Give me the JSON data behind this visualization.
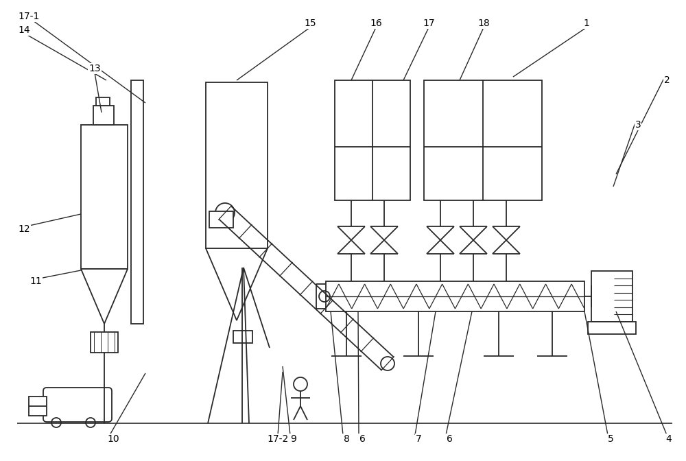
{
  "bg_color": "#ffffff",
  "lc": "#2a2a2a",
  "lw": 1.3,
  "figw": 10.0,
  "figh": 6.72,
  "dpi": 100,
  "labels": [
    [
      "1",
      8.55,
      6.38
    ],
    [
      "2",
      9.72,
      5.55
    ],
    [
      "3",
      9.3,
      4.9
    ],
    [
      "4",
      9.75,
      0.32
    ],
    [
      "5",
      8.9,
      0.32
    ],
    [
      "6",
      6.55,
      0.32
    ],
    [
      "6",
      5.28,
      0.32
    ],
    [
      "7",
      6.1,
      0.32
    ],
    [
      "8",
      5.05,
      0.32
    ],
    [
      "9",
      4.28,
      0.32
    ],
    [
      "10",
      1.65,
      0.32
    ],
    [
      "11",
      0.52,
      2.62
    ],
    [
      "12",
      0.35,
      3.38
    ],
    [
      "13",
      1.38,
      5.72
    ],
    [
      "14",
      0.35,
      6.28
    ],
    [
      "15",
      4.52,
      6.38
    ],
    [
      "16",
      5.48,
      6.38
    ],
    [
      "17",
      6.25,
      6.38
    ],
    [
      "18",
      7.05,
      6.38
    ],
    [
      "17-1",
      0.42,
      6.48
    ],
    [
      "17-2",
      4.05,
      0.32
    ]
  ],
  "leader_lines": [
    [
      8.55,
      6.32,
      7.48,
      5.6
    ],
    [
      9.68,
      5.58,
      8.98,
      4.18
    ],
    [
      9.26,
      4.93,
      8.94,
      4.0
    ],
    [
      9.72,
      0.38,
      8.98,
      2.18
    ],
    [
      8.86,
      0.38,
      8.52,
      2.18
    ],
    [
      6.5,
      0.38,
      6.88,
      2.18
    ],
    [
      5.23,
      0.38,
      5.22,
      2.18
    ],
    [
      6.05,
      0.38,
      6.35,
      2.18
    ],
    [
      5.0,
      0.38,
      4.82,
      2.18
    ],
    [
      4.23,
      0.38,
      4.12,
      1.38
    ],
    [
      1.6,
      0.38,
      2.12,
      1.28
    ],
    [
      0.52,
      2.65,
      1.18,
      2.78
    ],
    [
      0.38,
      3.42,
      1.18,
      3.6
    ],
    [
      1.38,
      5.66,
      1.48,
      5.08
    ],
    [
      0.38,
      6.22,
      1.55,
      5.55
    ],
    [
      4.52,
      6.32,
      3.45,
      5.55
    ],
    [
      5.48,
      6.32,
      5.12,
      5.55
    ],
    [
      6.25,
      6.32,
      5.88,
      5.55
    ],
    [
      7.05,
      6.32,
      6.7,
      5.55
    ],
    [
      0.48,
      6.42,
      2.12,
      5.22
    ],
    [
      4.05,
      0.38,
      4.12,
      1.3
    ]
  ]
}
